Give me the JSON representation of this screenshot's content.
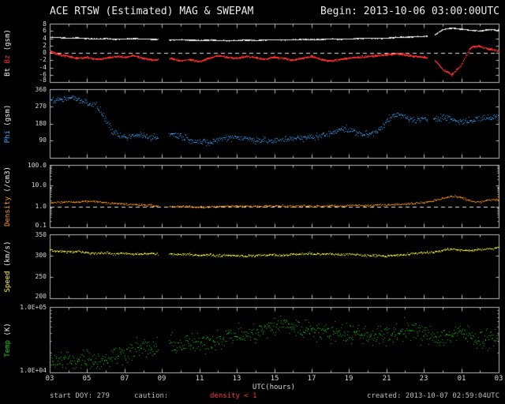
{
  "header": {
    "title": "ACE RTSW (Estimated) MAG & SWEPAM",
    "begin": "Begin: 2013-10-06 03:00:00UTC"
  },
  "footer": {
    "start_doy": "start DOY: 279",
    "caution_label": "caution:",
    "caution_value": "density < 1",
    "created": "created: 2013-10-07 02:59:04UTC"
  },
  "colors": {
    "background": "#000000",
    "frame": "#b8b8b8",
    "text": "#d8d8d8",
    "dashed": "#e8e8e8",
    "bt": "#f0f0f0",
    "bz": "#ff3030",
    "phi": "#44aaff",
    "density": "#ff9a00",
    "speed": "#ffff33",
    "temp": "#22cc22",
    "caution": "#ff3333"
  },
  "chart_data": {
    "type": "scatter",
    "title": "ACE RTSW (Estimated) MAG & SWEPAM",
    "subtitle": "Begin: 2013-10-06 03:00:00UTC",
    "x_axis": {
      "label": "UTC(hours)",
      "t_start": 3,
      "t_end": 27,
      "tick_hours": [
        3,
        5,
        7,
        9,
        11,
        13,
        15,
        17,
        19,
        21,
        23,
        25,
        27
      ],
      "tick_labels": [
        "03",
        "05",
        "07",
        "09",
        "11",
        "13",
        "15",
        "17",
        "19",
        "21",
        "23",
        "01",
        "03"
      ]
    },
    "panels": [
      {
        "id": "mag",
        "ylabel_parts": [
          {
            "text": "Bt",
            "color": "#f0f0f0"
          },
          {
            "text": "Bz",
            "color": "#ff3030"
          },
          {
            "text": "(gsm)",
            "color": "#f0f0f0"
          }
        ],
        "scale": "linear",
        "ymin": -8,
        "ymax": 8,
        "yticks": [
          {
            "v": 8,
            "label": "8"
          },
          {
            "v": 6,
            "label": "6"
          },
          {
            "v": 4,
            "label": "4"
          },
          {
            "v": 2,
            "label": "2"
          },
          {
            "v": 0,
            "label": "0"
          },
          {
            "v": -2,
            "label": "-2"
          },
          {
            "v": -4,
            "label": "-4"
          },
          {
            "v": -6,
            "label": "-6"
          },
          {
            "v": -8,
            "label": "-8"
          }
        ],
        "dashed_at": 0
      },
      {
        "id": "phi",
        "ylabel_parts": [
          {
            "text": "Phi",
            "color": "#44aaff"
          },
          {
            "text": "(gsm)",
            "color": "#f0f0f0"
          }
        ],
        "scale": "linear",
        "ymin": 0,
        "ymax": 360,
        "yticks": [
          {
            "v": 360,
            "label": "360"
          },
          {
            "v": 270,
            "label": "270"
          },
          {
            "v": 180,
            "label": "180"
          },
          {
            "v": 90,
            "label": "90"
          },
          {
            "v": 0,
            "label": ""
          }
        ],
        "dashed_at": null
      },
      {
        "id": "density",
        "ylabel_parts": [
          {
            "text": "Density",
            "color": "#ff9a00"
          },
          {
            "text": "(/cm3)",
            "color": "#f0f0f0"
          }
        ],
        "scale": "log",
        "ymin": 0.1,
        "ymax": 100,
        "yticks": [
          {
            "v": 100,
            "label": "100.0"
          },
          {
            "v": 10,
            "label": "10.0"
          },
          {
            "v": 1,
            "label": "1.0"
          },
          {
            "v": 0.1,
            "label": "0.1"
          }
        ],
        "dashed_at": 1
      },
      {
        "id": "speed",
        "ylabel_parts": [
          {
            "text": "Speed",
            "color": "#ffff33"
          },
          {
            "text": "(km/s)",
            "color": "#f0f0f0"
          }
        ],
        "scale": "linear",
        "ymin": 200,
        "ymax": 350,
        "yticks": [
          {
            "v": 350,
            "label": "350"
          },
          {
            "v": 300,
            "label": "300"
          },
          {
            "v": 250,
            "label": "250"
          },
          {
            "v": 200,
            "label": "200"
          }
        ],
        "dashed_at": null
      },
      {
        "id": "temp",
        "ylabel_parts": [
          {
            "text": "Temp",
            "color": "#22cc22"
          },
          {
            "text": "(K)",
            "color": "#f0f0f0"
          }
        ],
        "scale": "log",
        "ymin": 10000,
        "ymax": 100000,
        "yticks": [
          {
            "v": 100000,
            "label": "1.0E+05"
          },
          {
            "v": 10000,
            "label": "1.0E+04"
          }
        ],
        "dashed_at": null
      }
    ],
    "series": [
      {
        "name": "Bt",
        "panel": 0,
        "color": "#f0f0f0",
        "t0": 3,
        "t1": 27,
        "pph": 70,
        "size": 1,
        "jitter": 0.15,
        "gaps": [
          [
            8.8,
            9.4
          ],
          [
            23.2,
            23.6
          ]
        ],
        "values": [
          4.3,
          4.2,
          4.0,
          4.1,
          3.9,
          3.8,
          3.9,
          3.7,
          3.8,
          3.9,
          3.8,
          3.7,
          3.6,
          3.5,
          3.6,
          3.5,
          3.4,
          3.5,
          3.4,
          3.3,
          3.4,
          3.5,
          3.4,
          3.5,
          3.6,
          3.5,
          3.6,
          3.7,
          3.6,
          3.7,
          3.8,
          3.7,
          3.8,
          3.9,
          4.0,
          3.9,
          4.0,
          4.2,
          4.3,
          4.4,
          4.5,
          4.6,
          6.3,
          6.8,
          6.5,
          6.2,
          6.0,
          6.4,
          6.2
        ]
      },
      {
        "name": "Bz",
        "panel": 0,
        "color": "#ff3030",
        "t0": 3,
        "t1": 27,
        "pph": 70,
        "size": 1,
        "jitter": 0.4,
        "gaps": [
          [
            8.8,
            9.4
          ],
          [
            23.2,
            23.6
          ]
        ],
        "values": [
          0.5,
          -0.5,
          -1.0,
          -1.5,
          -1.2,
          -1.8,
          -1.5,
          -1.0,
          -1.2,
          -0.8,
          -1.5,
          -2.0,
          -1.8,
          -1.5,
          -2.2,
          -1.8,
          -2.5,
          -1.5,
          -0.8,
          -1.2,
          -1.5,
          -1.0,
          -1.3,
          -1.8,
          -1.2,
          -1.5,
          -2.0,
          -1.5,
          -1.0,
          -1.8,
          -2.3,
          -1.8,
          -1.5,
          -1.2,
          -1.0,
          -0.8,
          -0.5,
          -0.3,
          -0.5,
          -1.0,
          -1.2,
          -1.5,
          -4.5,
          -6.0,
          -3.5,
          1.5,
          1.8,
          1.0,
          0.5
        ]
      },
      {
        "name": "Phi",
        "panel": 1,
        "color": "#44aaff",
        "t0": 3,
        "t1": 27,
        "pph": 35,
        "size": 1,
        "jitter": 26,
        "gaps": [
          [
            8.8,
            9.4
          ],
          [
            23.2,
            23.5
          ]
        ],
        "values": [
          300,
          305,
          315,
          310,
          290,
          275,
          200,
          120,
          105,
          115,
          120,
          105,
          110,
          125,
          115,
          95,
          85,
          75,
          95,
          105,
          110,
          100,
          95,
          90,
          85,
          95,
          105,
          100,
          110,
          115,
          125,
          155,
          145,
          130,
          120,
          140,
          190,
          225,
          215,
          195,
          200,
          205,
          215,
          200,
          190,
          195,
          205,
          210,
          215
        ]
      },
      {
        "name": "Density",
        "panel": 2,
        "color": "#ff9a00",
        "t0": 3,
        "t1": 27,
        "pph": 30,
        "size": 1,
        "log_jitter": 0.07,
        "gaps": [
          [
            8.8,
            9.4
          ]
        ],
        "values": [
          1.5,
          1.6,
          1.7,
          1.6,
          1.8,
          1.7,
          1.5,
          1.4,
          1.3,
          1.2,
          1.2,
          1.1,
          1.0,
          1.0,
          1.0,
          0.95,
          0.9,
          0.95,
          1.0,
          1.0,
          1.05,
          1.0,
          1.0,
          1.05,
          1.1,
          1.05,
          1.0,
          1.05,
          1.0,
          1.05,
          1.1,
          1.05,
          1.1,
          1.15,
          1.1,
          1.15,
          1.2,
          1.25,
          1.3,
          1.4,
          1.5,
          1.8,
          2.4,
          3.0,
          2.6,
          1.8,
          1.6,
          2.0,
          2.2
        ]
      },
      {
        "name": "Speed",
        "panel": 3,
        "color": "#ffff33",
        "t0": 3,
        "t1": 27,
        "pph": 30,
        "size": 1,
        "jitter": 4,
        "gaps": [
          [
            8.8,
            9.4
          ]
        ],
        "values": [
          312,
          310,
          308,
          310,
          307,
          305,
          306,
          304,
          305,
          303,
          304,
          305,
          303,
          304,
          302,
          303,
          301,
          302,
          300,
          301,
          300,
          299,
          300,
          301,
          302,
          300,
          303,
          304,
          305,
          303,
          304,
          302,
          303,
          302,
          300,
          301,
          299,
          300,
          302,
          305,
          307,
          308,
          312,
          315,
          313,
          312,
          314,
          316,
          318
        ]
      },
      {
        "name": "Temp",
        "panel": 4,
        "color": "#22cc22",
        "t0": 3,
        "t1": 27,
        "pph": 35,
        "size": 1,
        "log_jitter": 0.22,
        "gaps": [
          [
            8.8,
            9.4
          ]
        ],
        "values": [
          15000,
          14000,
          16000,
          15000,
          17000,
          15000,
          16000,
          18000,
          20000,
          22000,
          24000,
          22000,
          25000,
          27000,
          26000,
          28000,
          26000,
          30000,
          32000,
          35000,
          38000,
          36000,
          40000,
          45000,
          50000,
          55000,
          50000,
          45000,
          48000,
          42000,
          40000,
          43000,
          38000,
          40000,
          36000,
          38000,
          35000,
          40000,
          45000,
          42000,
          38000,
          36000,
          34000,
          38000,
          40000,
          36000,
          32000,
          34000,
          36000
        ]
      }
    ]
  }
}
